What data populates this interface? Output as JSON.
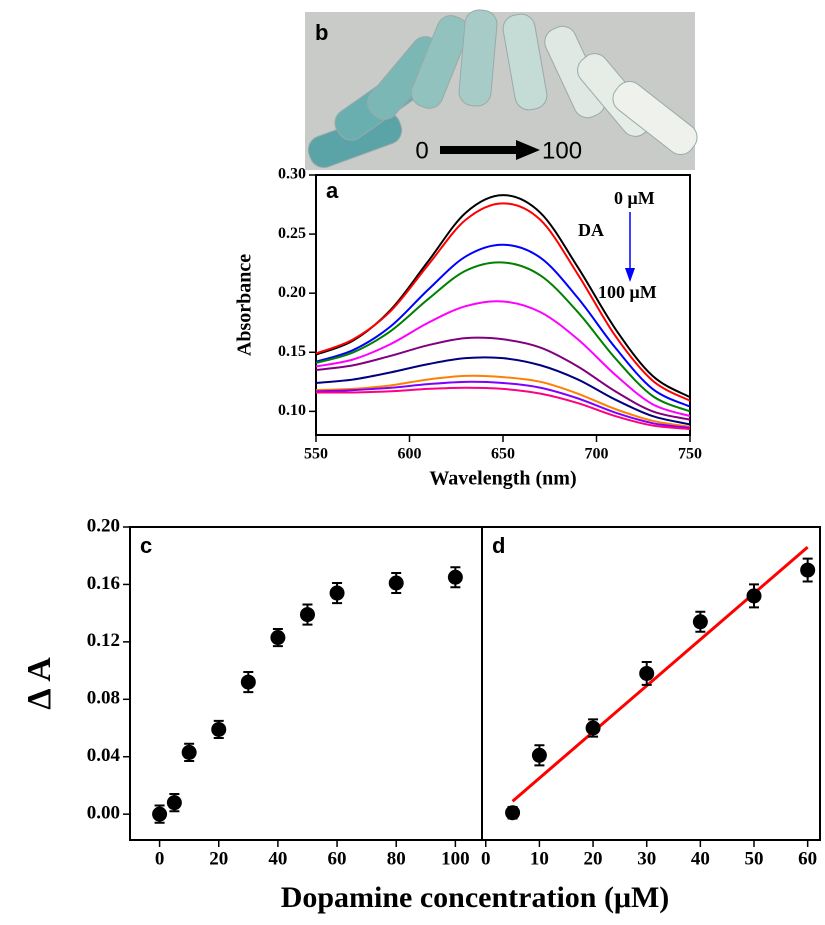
{
  "photo": {
    "label": "b",
    "from": "0",
    "to": "100"
  },
  "chart_data": [
    {
      "type": "line",
      "panel_label": "a",
      "xlabel": "Wavelength (nm)",
      "ylabel": "Absorbance",
      "x": [
        550,
        570,
        590,
        610,
        630,
        650,
        670,
        690,
        710,
        730,
        750
      ],
      "series": [
        {
          "color": "#000000",
          "values": [
            0.148,
            0.16,
            0.186,
            0.227,
            0.268,
            0.283,
            0.268,
            0.222,
            0.17,
            0.13,
            0.112
          ]
        },
        {
          "color": "#ff0000",
          "values": [
            0.149,
            0.161,
            0.185,
            0.224,
            0.262,
            0.276,
            0.262,
            0.216,
            0.164,
            0.126,
            0.109
          ]
        },
        {
          "color": "#0000ff",
          "values": [
            0.142,
            0.152,
            0.172,
            0.203,
            0.231,
            0.241,
            0.23,
            0.196,
            0.154,
            0.119,
            0.104
          ]
        },
        {
          "color": "#008000",
          "values": [
            0.141,
            0.15,
            0.168,
            0.195,
            0.219,
            0.226,
            0.215,
            0.184,
            0.145,
            0.113,
            0.1
          ]
        },
        {
          "color": "#ff00ff",
          "values": [
            0.138,
            0.144,
            0.157,
            0.175,
            0.189,
            0.193,
            0.184,
            0.161,
            0.131,
            0.106,
            0.096
          ]
        },
        {
          "color": "#800080",
          "values": [
            0.135,
            0.139,
            0.147,
            0.156,
            0.162,
            0.161,
            0.154,
            0.138,
            0.117,
            0.1,
            0.093
          ]
        },
        {
          "color": "#000080",
          "values": [
            0.124,
            0.127,
            0.133,
            0.14,
            0.145,
            0.145,
            0.139,
            0.127,
            0.11,
            0.096,
            0.089
          ]
        },
        {
          "color": "#ff8000",
          "values": [
            0.118,
            0.119,
            0.122,
            0.127,
            0.13,
            0.129,
            0.125,
            0.115,
            0.102,
            0.092,
            0.087
          ]
        },
        {
          "color": "#8000ff",
          "values": [
            0.117,
            0.118,
            0.12,
            0.123,
            0.125,
            0.124,
            0.12,
            0.111,
            0.099,
            0.09,
            0.086
          ]
        },
        {
          "color": "#ff0080",
          "values": [
            0.116,
            0.116,
            0.117,
            0.119,
            0.12,
            0.119,
            0.115,
            0.107,
            0.096,
            0.088,
            0.085
          ]
        }
      ],
      "xlim": [
        550,
        750
      ],
      "ylim": [
        0.08,
        0.3
      ],
      "xticks": [
        550,
        600,
        650,
        700,
        750
      ],
      "yticks": [
        {
          "value": 0.1,
          "label": "0.10"
        },
        0.15,
        {
          "value": 0.2,
          "label": "0.20"
        },
        0.25,
        {
          "value": 0.3,
          "label": "0.30"
        }
      ],
      "annotations": [
        "0 μM",
        "DA",
        "100 μM"
      ],
      "arrow_color": "#0000ff"
    },
    {
      "type": "scatter",
      "panel_label": "c",
      "ylabel": "Δ A",
      "xlabel": "Dopamine concentration (μM)",
      "x": [
        0,
        5,
        10,
        20,
        30,
        40,
        50,
        60,
        80,
        100
      ],
      "values": [
        0.0,
        0.008,
        0.043,
        0.059,
        0.092,
        0.123,
        0.139,
        0.154,
        0.161,
        0.165
      ],
      "errors": [
        0.006,
        0.006,
        0.006,
        0.006,
        0.007,
        0.006,
        0.007,
        0.007,
        0.007,
        0.007
      ],
      "color": "#000000",
      "xlim": [
        -10,
        109
      ],
      "ylim": [
        -0.018,
        0.2
      ],
      "xticks": [
        0,
        20,
        40,
        60,
        80,
        100
      ],
      "yticks": [
        {
          "value": 0,
          "label": "0.00"
        },
        0.04,
        0.08,
        0.12,
        0.16,
        {
          "value": 0.2,
          "label": "0.20"
        }
      ]
    },
    {
      "type": "scatter",
      "panel_label": "d",
      "x": [
        5,
        10,
        20,
        30,
        40,
        50,
        60
      ],
      "values": [
        0.001,
        0.041,
        0.06,
        0.098,
        0.134,
        0.152,
        0.17
      ],
      "errors": [
        0.004,
        0.007,
        0.006,
        0.008,
        0.007,
        0.008,
        0.008
      ],
      "color": "#000000",
      "xlim": [
        -0.7,
        62.3
      ],
      "ylim": [
        -0.018,
        0.2
      ],
      "xticks": [
        0,
        10,
        20,
        30,
        40,
        50,
        60
      ],
      "fit": {
        "x": [
          5,
          60
        ],
        "values": [
          0.009,
          0.186
        ],
        "color": "#ff0000"
      }
    }
  ]
}
